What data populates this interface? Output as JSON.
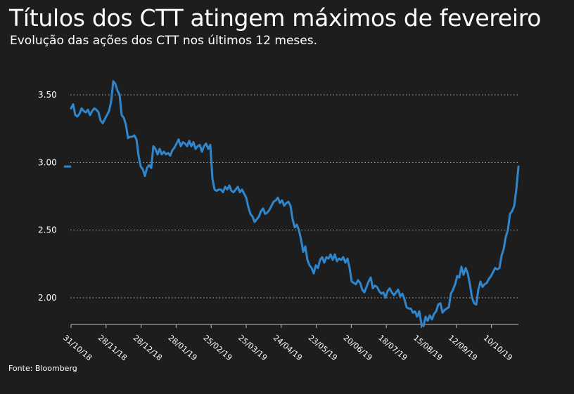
{
  "header": {
    "title": "Títulos dos CTT atingem máximos de fevereiro",
    "subtitle": "Evolução das ações dos CTT nos últimos 12 meses."
  },
  "footer": {
    "source": "Fonte: Bloomberg"
  },
  "colors": {
    "background": "#1d1d1d",
    "line": "#2f86cc",
    "grid": "#bdbdbd",
    "text": "#ffffff"
  },
  "chart_data": {
    "type": "line",
    "title": "Títulos dos CTT atingem máximos de fevereiro",
    "subtitle": "Evolução das ações dos CTT nos últimos 12 meses.",
    "xlabel": "",
    "ylabel": "",
    "ylim": [
      1.8,
      3.65
    ],
    "y_ticks": [
      2.0,
      2.5,
      3.0,
      3.5
    ],
    "y_tick_labels": [
      "2.00",
      "2.50",
      "3.00",
      "3.50"
    ],
    "x_tick_labels": [
      "31/10/18",
      "28/11/18",
      "28/12/18",
      "28/01/19",
      "25/02/19",
      "25/03/19",
      "24/04/19",
      "23/05/19",
      "20/06/19",
      "18/07/19",
      "15/08/19",
      "12/09/19",
      "10/10/19"
    ],
    "grid": "horizontal dotted",
    "latest_value": 2.97,
    "series": [
      {
        "values": [
          3.4,
          3.43,
          3.35,
          3.34,
          3.36,
          3.4,
          3.38,
          3.37,
          3.39,
          3.35,
          3.38,
          3.4,
          3.39,
          3.37,
          3.31,
          3.29,
          3.32,
          3.35,
          3.38,
          3.45,
          3.6,
          3.58,
          3.53,
          3.5,
          3.35,
          3.33,
          3.28,
          3.18,
          3.19,
          3.19,
          3.2,
          3.17,
          3.05,
          2.97,
          2.95,
          2.9,
          2.96,
          2.98,
          2.96,
          3.12,
          3.1,
          3.06,
          3.1,
          3.06,
          3.08,
          3.06,
          3.07,
          3.05,
          3.09,
          3.11,
          3.14,
          3.17,
          3.12,
          3.15,
          3.14,
          3.12,
          3.16,
          3.12,
          3.15,
          3.1,
          3.12,
          3.13,
          3.08,
          3.12,
          3.14,
          3.1,
          3.13,
          2.88,
          2.8,
          2.79,
          2.8,
          2.8,
          2.78,
          2.82,
          2.8,
          2.83,
          2.79,
          2.78,
          2.8,
          2.82,
          2.78,
          2.8,
          2.77,
          2.74,
          2.67,
          2.62,
          2.6,
          2.56,
          2.58,
          2.6,
          2.64,
          2.66,
          2.62,
          2.63,
          2.65,
          2.68,
          2.71,
          2.72,
          2.74,
          2.7,
          2.72,
          2.68,
          2.7,
          2.71,
          2.68,
          2.58,
          2.52,
          2.54,
          2.5,
          2.43,
          2.34,
          2.38,
          2.28,
          2.24,
          2.22,
          2.18,
          2.24,
          2.22,
          2.28,
          2.3,
          2.26,
          2.3,
          2.29,
          2.32,
          2.28,
          2.32,
          2.27,
          2.29,
          2.28,
          2.3,
          2.26,
          2.29,
          2.22,
          2.12,
          2.11,
          2.1,
          2.13,
          2.11,
          2.06,
          2.04,
          2.08,
          2.12,
          2.15,
          2.07,
          2.09,
          2.08,
          2.05,
          2.03,
          2.04,
          2.0,
          2.05,
          2.07,
          2.04,
          2.02,
          2.04,
          2.06,
          2.01,
          2.03,
          1.99,
          1.93,
          1.92,
          1.92,
          1.89,
          1.9,
          1.86,
          1.9,
          1.81,
          1.79,
          1.86,
          1.83,
          1.87,
          1.84,
          1.88,
          1.9,
          1.95,
          1.96,
          1.89,
          1.91,
          1.92,
          1.93,
          2.03,
          2.06,
          2.1,
          2.16,
          2.15,
          2.23,
          2.17,
          2.22,
          2.18,
          2.1,
          2.0,
          1.96,
          1.95,
          2.06,
          2.12,
          2.08,
          2.1,
          2.11,
          2.14,
          2.16,
          2.19,
          2.22,
          2.21,
          2.22,
          2.31,
          2.36,
          2.45,
          2.5,
          2.62,
          2.64,
          2.68,
          2.8,
          2.97
        ]
      }
    ]
  }
}
